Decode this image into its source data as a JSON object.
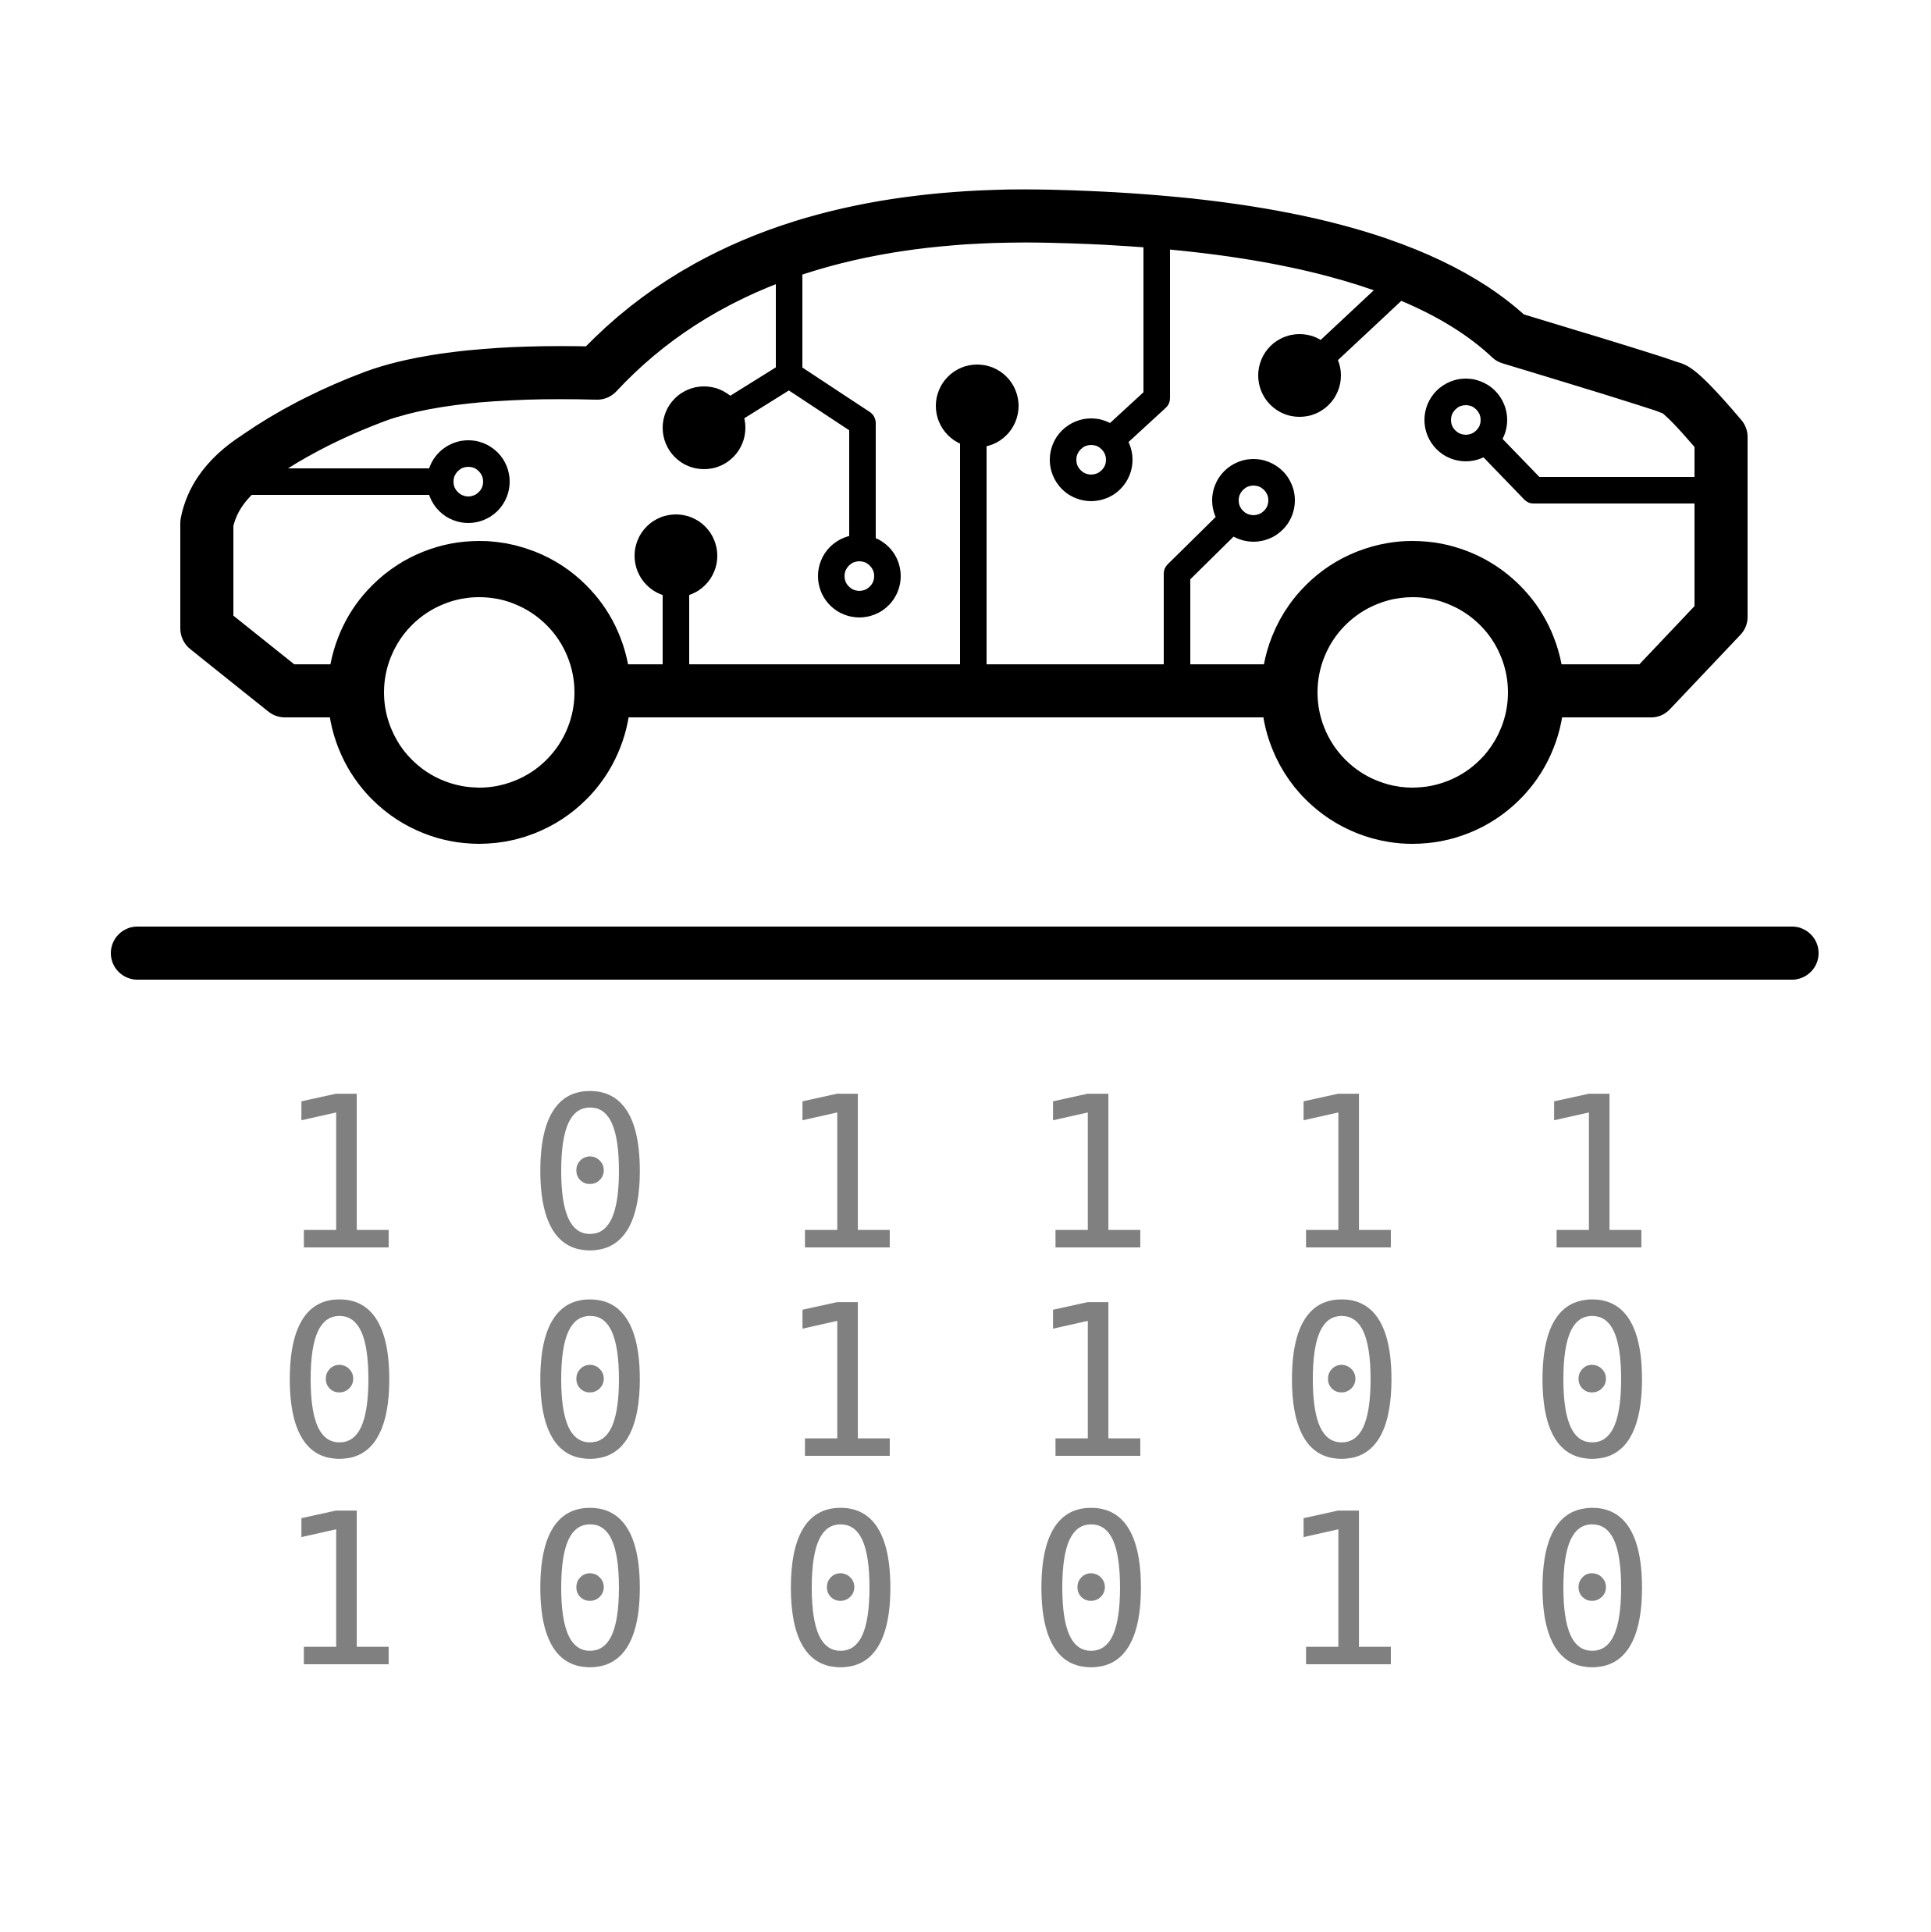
{
  "icon": {
    "name": "autonomous-car-circuit",
    "stroke_color": "#000000",
    "background_color": "#ffffff"
  },
  "binary": {
    "color": "#808080",
    "rows": [
      [
        "1",
        "0",
        "1",
        "1",
        "1",
        "1"
      ],
      [
        "0",
        "0",
        "1",
        "1",
        "0",
        "0"
      ],
      [
        "1",
        "0",
        "0",
        "0",
        "1",
        "0"
      ]
    ]
  }
}
